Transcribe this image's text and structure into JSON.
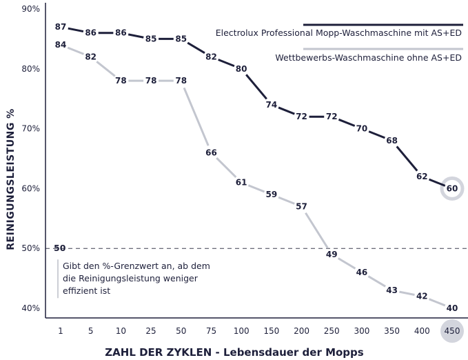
{
  "chart_data": {
    "type": "line",
    "categories": [
      "1",
      "5",
      "10",
      "25",
      "50",
      "75",
      "100",
      "150",
      "200",
      "250",
      "300",
      "350",
      "400",
      "450"
    ],
    "series": [
      {
        "name": "Electrolux Professional Mopp-Waschmaschine mit AS+ED",
        "color": "#1d1f3a",
        "values": [
          87,
          86,
          86,
          85,
          85,
          82,
          80,
          74,
          72,
          72,
          70,
          68,
          62,
          60
        ]
      },
      {
        "name": "Wettbewerbs-Waschmaschine ohne AS+ED",
        "color": "#c3c6cf",
        "values": [
          84,
          82,
          78,
          78,
          78,
          66,
          61,
          59,
          57,
          49,
          46,
          43,
          42,
          40
        ]
      }
    ],
    "ylim": [
      40,
      90
    ],
    "yticks": [
      "40%",
      "50%",
      "60%",
      "70%",
      "80%",
      "90%"
    ],
    "ylabel": "REINIGUNGSLEISTUNG %",
    "xlabel": "ZAHL DER ZYKLEN - Lebensdauer der Mopps",
    "legend_position": "top-right",
    "threshold": {
      "value": 50,
      "label": "50",
      "annotation": [
        "Gibt den %-Grenzwert an, ab dem",
        "die Reinigungsleistung weniger",
        "effizient ist"
      ]
    },
    "highlighted_category": "450",
    "grid": false
  }
}
